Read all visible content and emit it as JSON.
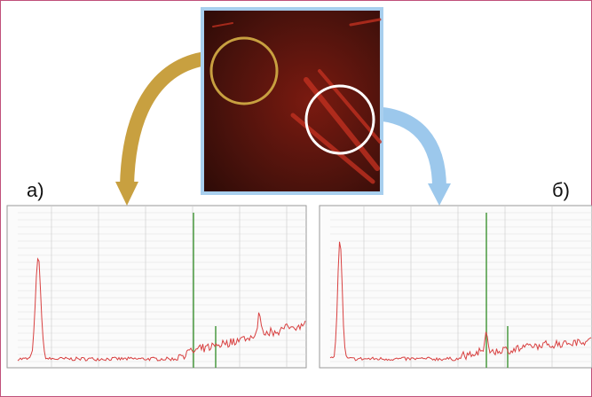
{
  "labels": {
    "left": "а)",
    "right": "б)"
  }
}
